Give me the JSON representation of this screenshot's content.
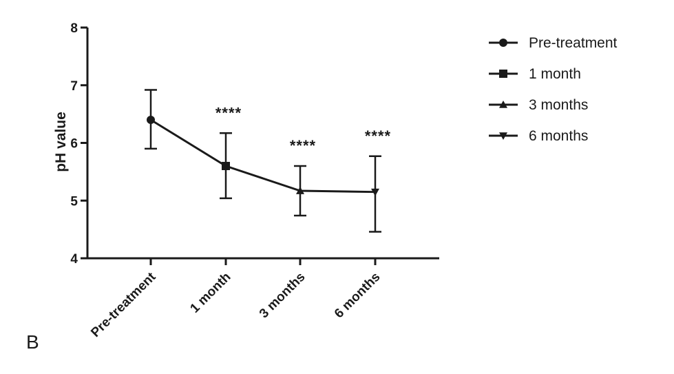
{
  "panel_label": "B",
  "chart_data": {
    "type": "line",
    "categories": [
      "Pre-treatment",
      "1 month",
      "3 months",
      "6 months"
    ],
    "ylabel": "pH value",
    "xlabel": "",
    "ylim": [
      4,
      8
    ],
    "yticks": [
      4,
      5,
      6,
      7,
      8
    ],
    "series": [
      {
        "values": [
          6.4,
          5.6,
          5.17,
          5.15
        ],
        "error": [
          [
            5.9,
            6.92
          ],
          [
            5.04,
            6.17
          ],
          [
            4.74,
            5.6
          ],
          [
            4.46,
            5.77
          ]
        ]
      }
    ],
    "significance": [
      "",
      "****",
      "****",
      "****"
    ],
    "legend": {
      "placement": "right",
      "entries": [
        {
          "label": "Pre-treatment",
          "marker": "circle"
        },
        {
          "label": "1 month",
          "marker": "square"
        },
        {
          "label": "3 months",
          "marker": "triangle-up"
        },
        {
          "label": "6 months",
          "marker": "triangle-down"
        }
      ]
    },
    "grid": false,
    "color": "#1a1a1a"
  }
}
